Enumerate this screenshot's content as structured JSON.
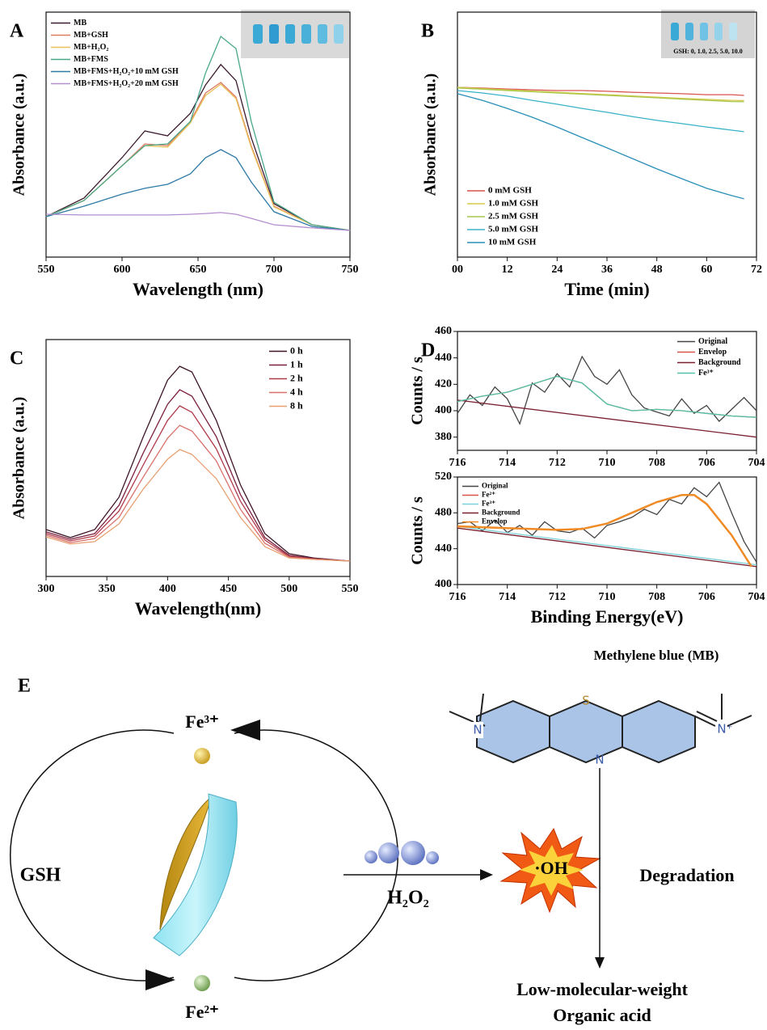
{
  "chart_data": [
    {
      "type": "line",
      "label": "A",
      "xlabel": "Wavelength (nm)",
      "ylabel": "Absorbance (a.u.)",
      "xlim": [
        550,
        750
      ],
      "ylim": [
        0,
        100
      ],
      "xticks": [
        550,
        600,
        650,
        700,
        750
      ],
      "legend": "upper left",
      "x": [
        550,
        575,
        600,
        615,
        630,
        645,
        655,
        665,
        675,
        685,
        700,
        725,
        750
      ],
      "series": [
        {
          "name": "MB",
          "color": "#3b1a2e",
          "values": [
            16.5,
            24.1,
            40.6,
            51.5,
            49.5,
            58.7,
            70.3,
            78.6,
            72.0,
            48.8,
            21.8,
            13.2,
            10.9
          ]
        },
        {
          "name": "MB+GSH",
          "color": "#e07a5f",
          "values": [
            16.5,
            23.1,
            37.3,
            46.2,
            45.5,
            55.4,
            67.0,
            71.3,
            65.3,
            45.5,
            20.8,
            13.2,
            10.9
          ]
        },
        {
          "name": "MB+H₂O₂",
          "color": "#e8c15a",
          "values": [
            16.5,
            23.1,
            37.3,
            45.5,
            44.9,
            54.8,
            66.0,
            70.6,
            64.7,
            44.9,
            20.5,
            13.2,
            10.9
          ]
        },
        {
          "name": "MB+FMS",
          "color": "#4aa88a",
          "values": [
            16.5,
            23.1,
            37.3,
            45.5,
            46.2,
            55.4,
            75.2,
            90.1,
            85.1,
            55.4,
            22.4,
            13.2,
            10.9
          ]
        },
        {
          "name": "MB+FMS+H₂O₂+10 mM GSH",
          "color": "#2e7aa6",
          "values": [
            16.5,
            20.8,
            25.7,
            28.1,
            29.7,
            34.0,
            40.6,
            43.9,
            40.6,
            30.7,
            18.5,
            12.5,
            10.9
          ]
        },
        {
          "name": "MB+FMS+H₂O₂+20 mM GSH",
          "color": "#b48fd0",
          "values": [
            17.5,
            17.2,
            17.2,
            17.2,
            17.2,
            17.5,
            17.8,
            18.2,
            17.5,
            15.8,
            13.2,
            11.9,
            10.9
          ]
        }
      ]
    },
    {
      "type": "line",
      "label": "B",
      "xlabel": "Time (min)",
      "ylabel": "Absorbance (a.u.)",
      "xlim": [
        0,
        72
      ],
      "ylim": [
        0,
        100
      ],
      "xticks": [
        {
          "value": 0,
          "label": "00"
        },
        12,
        24,
        36,
        48,
        60,
        72
      ],
      "legend": "lower left",
      "inset_label": "GSH: 0, 1.0, 2.5, 5.0, 10.0",
      "x": [
        0,
        6,
        12,
        18,
        24,
        30,
        36,
        42,
        48,
        54,
        60,
        66,
        69
      ],
      "series": [
        {
          "name": "0 mM GSH",
          "color": "#d9534f",
          "values": [
            69.3,
            69.0,
            68.6,
            68.3,
            68.0,
            68.0,
            67.7,
            67.3,
            67.0,
            66.7,
            66.3,
            66.3,
            66.0
          ]
        },
        {
          "name": "1.0 mM GSH",
          "color": "#d4c94a",
          "values": [
            69.3,
            68.8,
            68.3,
            67.8,
            67.3,
            66.8,
            66.3,
            65.8,
            65.3,
            64.8,
            64.4,
            64.0,
            63.9
          ]
        },
        {
          "name": "2.5 mM GSH",
          "color": "#a8c74a",
          "values": [
            69.0,
            68.5,
            68.0,
            67.5,
            67.0,
            66.5,
            66.0,
            65.5,
            65.0,
            64.5,
            64.0,
            63.5,
            63.4
          ]
        },
        {
          "name": "5.0 mM GSH",
          "color": "#3ab3c9",
          "values": [
            68.0,
            67.0,
            65.7,
            64.0,
            62.4,
            60.7,
            59.1,
            57.4,
            55.8,
            54.5,
            53.1,
            51.8,
            51.2
          ]
        },
        {
          "name": "10 mM GSH",
          "color": "#2a8fb8",
          "values": [
            66.7,
            64.0,
            60.7,
            57.1,
            53.1,
            48.8,
            44.6,
            40.3,
            36.0,
            32.0,
            28.1,
            25.1,
            23.8
          ]
        }
      ]
    },
    {
      "type": "line",
      "label": "C",
      "xlabel": "Wavelength(nm)",
      "ylabel": "Absorbance (a.u.)",
      "xlim": [
        300,
        550
      ],
      "ylim": [
        0,
        100
      ],
      "xticks": [
        300,
        350,
        400,
        450,
        500,
        550
      ],
      "legend": "upper right",
      "x": [
        300,
        320,
        340,
        360,
        380,
        400,
        410,
        420,
        440,
        460,
        480,
        500,
        520,
        550
      ],
      "series": [
        {
          "name": "0 h",
          "color": "#3d1428",
          "values": [
            19.8,
            16.4,
            19.8,
            33.4,
            59.0,
            82.9,
            88.7,
            86.3,
            65.9,
            38.6,
            18.1,
            9.6,
            7.8,
            6.5
          ]
        },
        {
          "name": "1 h",
          "color": "#7a1f3d",
          "values": [
            18.8,
            15.7,
            18.1,
            30.0,
            52.2,
            72.7,
            78.8,
            76.1,
            59.0,
            34.5,
            16.4,
            8.9,
            7.5,
            6.5
          ]
        },
        {
          "name": "2 h",
          "color": "#b03a4a",
          "values": [
            18.1,
            15.0,
            17.1,
            27.6,
            47.1,
            65.9,
            72.0,
            69.3,
            53.9,
            31.7,
            15.4,
            8.5,
            7.5,
            6.5
          ]
        },
        {
          "name": "4 h",
          "color": "#d9706a",
          "values": [
            17.4,
            14.3,
            16.0,
            24.9,
            42.0,
            58.4,
            63.8,
            61.4,
            48.8,
            28.3,
            14.0,
            8.2,
            7.2,
            6.5
          ]
        },
        {
          "name": "8 h",
          "color": "#e8a070",
          "values": [
            16.7,
            13.7,
            14.7,
            22.2,
            36.9,
            49.5,
            53.6,
            51.5,
            41.3,
            24.9,
            12.6,
            7.8,
            7.2,
            6.5
          ]
        }
      ]
    },
    {
      "type": "line",
      "label": "D",
      "ylabel": "Counts / s",
      "xlim": [
        716,
        704
      ],
      "ylim": [
        370,
        460
      ],
      "xticks": [
        716,
        714,
        712,
        710,
        708,
        706,
        704
      ],
      "yticks": [
        380,
        400,
        420,
        440,
        460
      ],
      "legend": "upper right",
      "series": [
        {
          "name": "Original",
          "color": "#444444",
          "x": [
            716,
            715.5,
            715,
            714.5,
            714,
            713.5,
            713,
            712.5,
            712,
            711.5,
            711,
            710.5,
            710,
            709.5,
            709,
            708.5,
            708,
            707.5,
            707,
            706.5,
            706,
            705.5,
            705,
            704.5,
            704
          ],
          "values": [
            398,
            412,
            404,
            418,
            409,
            390,
            421,
            414,
            428,
            418,
            441,
            426,
            420,
            431,
            412,
            402,
            399,
            396,
            409,
            398,
            404,
            392,
            401,
            410,
            400
          ]
        },
        {
          "name": "Envelop",
          "color": "#d9534f",
          "x": [
            716,
            715,
            714,
            713,
            712,
            711,
            710,
            709,
            708,
            707,
            706,
            705,
            704
          ],
          "values": [
            407,
            411,
            414,
            420,
            426,
            421,
            405,
            400,
            401,
            400,
            398,
            396,
            395
          ]
        },
        {
          "name": "Background",
          "color": "#7a2030",
          "x": [
            716,
            704
          ],
          "values": [
            408,
            380
          ]
        },
        {
          "name": "Fe³⁺",
          "color": "#4ec4a8",
          "x": [
            716,
            715,
            714,
            713,
            712,
            711,
            710,
            709,
            708,
            707,
            706,
            705,
            704
          ],
          "values": [
            407,
            411,
            414,
            420,
            426,
            421,
            405,
            400,
            401,
            400,
            398,
            396,
            395
          ]
        }
      ]
    },
    {
      "type": "line",
      "xlabel": "Binding Energy(eV)",
      "ylabel": "Counts / s",
      "xlim": [
        716,
        704
      ],
      "ylim": [
        400,
        520
      ],
      "xticks": [
        716,
        714,
        712,
        710,
        708,
        706,
        704
      ],
      "yticks": [
        400,
        440,
        480,
        520
      ],
      "legend": "upper left",
      "series": [
        {
          "name": "Original",
          "color": "#444444",
          "x": [
            716,
            715.5,
            715,
            714.5,
            714,
            713.5,
            713,
            712.5,
            712,
            711.5,
            711,
            710.5,
            710,
            709.5,
            709,
            708.5,
            708,
            707.5,
            707,
            706.5,
            706,
            705.5,
            705,
            704.5,
            704
          ],
          "values": [
            468,
            470,
            460,
            472,
            458,
            466,
            455,
            470,
            460,
            458,
            463,
            452,
            466,
            470,
            475,
            484,
            478,
            495,
            490,
            508,
            498,
            514,
            480,
            448,
            425
          ]
        },
        {
          "name": "Fe²⁺",
          "color": "#d9534f",
          "x": [
            716,
            715,
            714,
            713,
            712,
            711,
            710,
            709,
            708,
            707,
            706.5,
            706,
            705,
            704.2
          ],
          "values": [
            465,
            464,
            463,
            462,
            461,
            462,
            468,
            480,
            492,
            500,
            500,
            490,
            455,
            420
          ]
        },
        {
          "name": "Fe³⁺",
          "color": "#7ad0d8",
          "x": [
            716,
            704
          ],
          "values": [
            465,
            422
          ]
        },
        {
          "name": "Background",
          "color": "#7a2030",
          "x": [
            716,
            704
          ],
          "values": [
            463,
            420
          ]
        },
        {
          "name": "Envelop",
          "color": "#f08a24",
          "x": [
            716,
            715,
            714,
            713,
            712,
            711,
            710,
            709,
            708,
            707,
            706.5,
            706,
            705,
            704.2
          ],
          "values": [
            465,
            464,
            463,
            462,
            461,
            462,
            468,
            480,
            492,
            500,
            500,
            490,
            455,
            420
          ]
        }
      ]
    }
  ],
  "diagram": {
    "label": "E",
    "title": "Methylene blue (MB)",
    "fe3": "Fe³⁺",
    "fe2": "Fe²⁺",
    "gsh": "GSH",
    "h2o2": "H₂O₂",
    "oh": "·OH",
    "degradation": "Degradation",
    "product_line1": "Low-molecular-weight",
    "product_line2": "Organic acid",
    "atoms": [
      "N",
      "S",
      "N",
      "N⁺"
    ]
  }
}
